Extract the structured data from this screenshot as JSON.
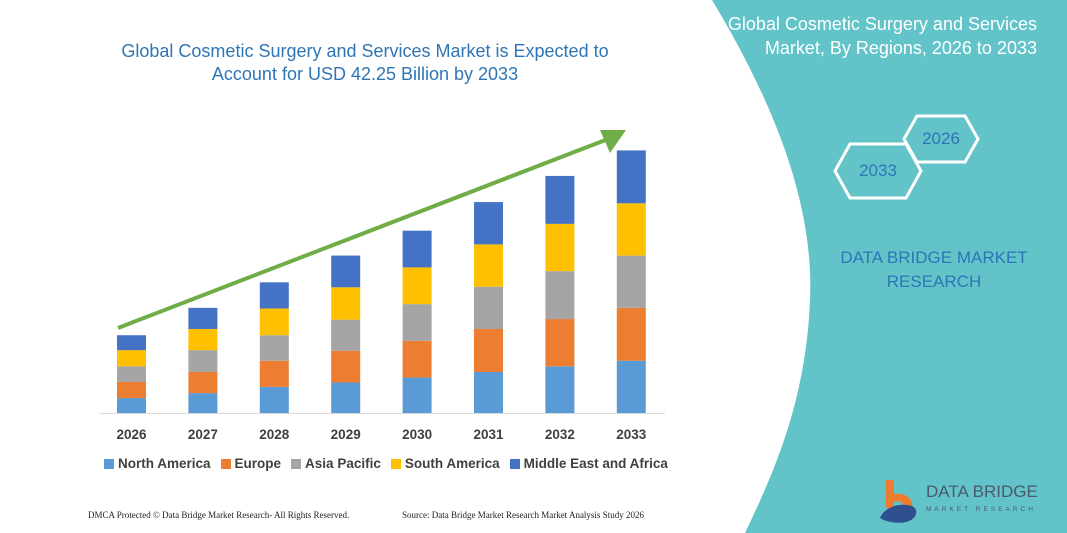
{
  "header": {
    "title": "Global Cosmetic Surgery and Services Market is Expected to Account for USD 42.25 Billion by 2033"
  },
  "side_panel": {
    "title": "Global Cosmetic Surgery and Services Market, By Regions, 2026 to 2033",
    "hex_start": "2026",
    "hex_end": "2033",
    "brand": "DATA BRIDGE MARKET RESEARCH",
    "panel_color": "#62c4c9"
  },
  "logo": {
    "name": "DATA BRIDGE",
    "sub": "MARKET RESEARCH"
  },
  "footer": {
    "left": "DMCA Protected © Data Bridge Market Research- All Rights Reserved.",
    "right": "Source: Data Bridge Market Research Market Analysis Study 2026"
  },
  "chart_data": {
    "type": "bar",
    "stacked": true,
    "title": "Global Cosmetic Surgery and Services Market is Expected to Account for USD 42.25 Billion by 2033",
    "xlabel": "",
    "ylabel": "",
    "ylim": [
      0,
      45
    ],
    "grid": false,
    "y_axis_shown": false,
    "legend_position": "bottom",
    "trend_arrow_color": "#70ad47",
    "categories": [
      "2026",
      "2027",
      "2028",
      "2029",
      "2030",
      "2031",
      "2032",
      "2033"
    ],
    "series": [
      {
        "name": "North America",
        "color": "#5b9bd5",
        "values": [
          2.4,
          3.2,
          4.2,
          4.9,
          5.7,
          6.6,
          7.5,
          8.4
        ]
      },
      {
        "name": "Europe",
        "color": "#ed7d31",
        "values": [
          2.6,
          3.4,
          4.2,
          5.1,
          5.9,
          6.9,
          7.6,
          8.5
        ]
      },
      {
        "name": "Asia Pacific",
        "color": "#a5a5a5",
        "values": [
          2.5,
          3.5,
          4.1,
          5.0,
          5.9,
          6.8,
          7.7,
          8.4
        ]
      },
      {
        "name": "South America",
        "color": "#ffc000",
        "values": [
          2.6,
          3.4,
          4.3,
          5.2,
          5.9,
          6.8,
          7.6,
          8.4
        ]
      },
      {
        "name": "Middle East and Africa",
        "color": "#4472c4",
        "values": [
          2.4,
          3.4,
          4.2,
          5.1,
          5.9,
          6.8,
          7.7,
          8.5
        ]
      }
    ]
  }
}
